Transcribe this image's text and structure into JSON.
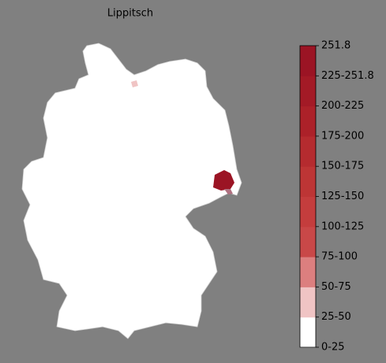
{
  "title": "Lippitsch",
  "colorbar": {
    "labels": [
      "0-25",
      "25-50",
      "50-75",
      "75-100",
      "100-125",
      "125-150",
      "150-175",
      "175-200",
      "200-225",
      "225-251.8",
      "251.8"
    ],
    "colors": [
      "#ffffff",
      "#f0c4c4",
      "#dc7f7f",
      "#c94848",
      "#c43d3d",
      "#bd3535",
      "#b52b2f",
      "#ac2129",
      "#a31a26",
      "#9b1424"
    ]
  }
}
